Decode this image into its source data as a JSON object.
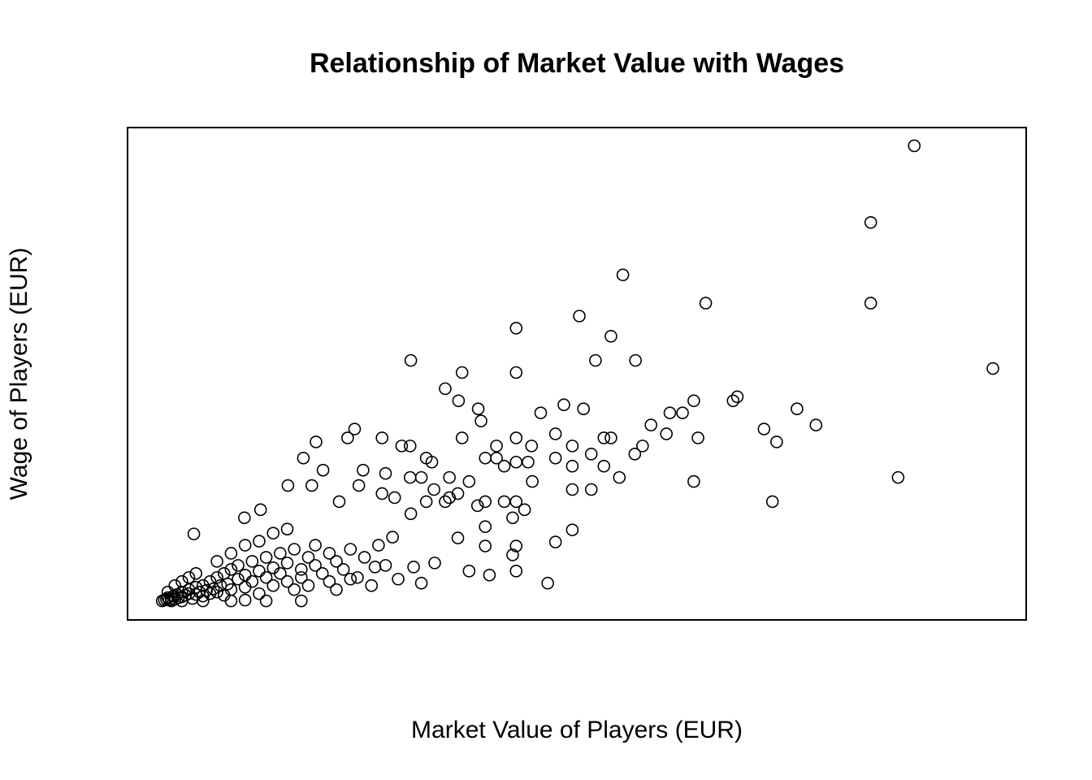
{
  "chart_data": {
    "type": "scatter",
    "title": "Relationship of Market Value with Wages",
    "x_label": "Market Value of Players (EUR)",
    "y_label": "Wage of Players (EUR)",
    "color": "#000000",
    "xlim": [
      -4740000,
      123240000
    ],
    "ylim": [
      -22600,
      587600
    ],
    "x": [
      107300000,
      101100000,
      101100000,
      118500000,
      65800000,
      77600000,
      59600000,
      50600000,
      64100000,
      35600000,
      61900000,
      67600000,
      50600000,
      42900000,
      40500000,
      42400000,
      45200000,
      45600000,
      54100000,
      57400000,
      60200000,
      75900000,
      81500000,
      82100000,
      72500000,
      74300000,
      90600000,
      93300000,
      69800000,
      85900000,
      87700000,
      76500000,
      72000000,
      63100000,
      64100000,
      68600000,
      67500000,
      63100000,
      65300000,
      75900000,
      105000000,
      87100000,
      61300000,
      58600000,
      58600000,
      56200000,
      56200000,
      58600000,
      61300000,
      58600000,
      56200000,
      55100000,
      50600000,
      52800000,
      47800000,
      47800000,
      46200000,
      48900000,
      50600000,
      52300000,
      52900000,
      42900000,
      43900000,
      48900000,
      50600000,
      51800000,
      50100000,
      46200000,
      45100000,
      46200000,
      46200000,
      50600000,
      50100000,
      50600000,
      46800000,
      43900000,
      42300000,
      40500000,
      42300000,
      37800000,
      38600000,
      35500000,
      34300000,
      31500000,
      27600000,
      26600000,
      22100000,
      20300000,
      23100000,
      32000000,
      35500000,
      37100000,
      41100000,
      38900000,
      41100000,
      37800000,
      35600000,
      33300000,
      31500000,
      28800000,
      28200000,
      25400000,
      21500000,
      18100000,
      37100000,
      39000000,
      36000000,
      33800000,
      30500000,
      27000000,
      4700000,
      11900000,
      14200000,
      200000,
      500000,
      800000,
      1000000,
      1200000,
      1500000,
      1800000,
      2000000,
      2300000,
      2500000,
      3000000,
      3000000,
      3500000,
      4000000,
      4000000,
      4500000,
      5000000,
      5000000,
      5500000,
      6000000,
      6000000,
      6500000,
      7000000,
      7000000,
      7500000,
      8000000,
      8000000,
      8500000,
      9000000,
      9000000,
      9500000,
      10000000,
      10000000,
      11000000,
      11000000,
      12000000,
      12000000,
      13000000,
      13000000,
      14000000,
      14000000,
      15000000,
      15000000,
      16000000,
      16000000,
      17000000,
      17000000,
      18000000,
      18000000,
      19000000,
      19000000,
      20000000,
      20000000,
      21000000,
      21000000,
      22000000,
      22000000,
      23000000,
      24000000,
      24000000,
      25000000,
      25000000,
      26000000,
      27000000,
      28000000,
      29000000,
      30000000,
      31000000,
      32000000,
      33000000,
      15000000,
      20000000,
      12000000,
      10000000,
      6000000,
      3000000,
      1500000,
      4000000,
      2000000,
      3000000,
      5000000,
      1000000,
      8000000,
      10000000,
      12000000,
      14000000,
      16000000,
      18000000
    ],
    "y": [
      565000,
      470000,
      370000,
      289000,
      405000,
      370000,
      354000,
      339000,
      329000,
      299000,
      299000,
      299000,
      284000,
      284000,
      264000,
      249000,
      239000,
      224000,
      234000,
      244000,
      239000,
      249000,
      249000,
      254000,
      234000,
      234000,
      239000,
      219000,
      219000,
      214000,
      198000,
      203000,
      208000,
      203000,
      203000,
      193000,
      183000,
      168000,
      154000,
      149000,
      154000,
      124000,
      183000,
      193000,
      168000,
      208000,
      178000,
      139000,
      139000,
      89000,
      74000,
      23000,
      203000,
      193000,
      193000,
      178000,
      178000,
      168000,
      173000,
      173000,
      149000,
      203000,
      149000,
      124000,
      124000,
      114000,
      104000,
      124000,
      119000,
      93000,
      69000,
      69000,
      58000,
      38000,
      33000,
      38000,
      79000,
      124000,
      134000,
      178000,
      173000,
      193000,
      193000,
      203000,
      214000,
      203000,
      198000,
      178000,
      163000,
      159000,
      154000,
      154000,
      154000,
      139000,
      129000,
      124000,
      109000,
      129000,
      134000,
      163000,
      144000,
      124000,
      144000,
      144000,
      23000,
      48000,
      43000,
      28000,
      43000,
      28000,
      84000,
      104000,
      114000,
      1000,
      2000,
      3000,
      5000,
      2000,
      4000,
      7000,
      3000,
      9000,
      5000,
      6000,
      12000,
      8000,
      10000,
      15000,
      4000,
      18000,
      9000,
      12000,
      20000,
      7000,
      14000,
      25000,
      10000,
      16000,
      30000,
      12000,
      20000,
      35000,
      8000,
      22000,
      40000,
      15000,
      28000,
      45000,
      18000,
      33000,
      50000,
      25000,
      38000,
      10000,
      55000,
      30000,
      20000,
      42000,
      60000,
      35000,
      25000,
      48000,
      15000,
      65000,
      40000,
      30000,
      55000,
      20000,
      70000,
      45000,
      35000,
      60000,
      25000,
      50000,
      15000,
      40000,
      65000,
      30000,
      55000,
      20000,
      70000,
      45000,
      80000,
      1000,
      1000,
      2000,
      1000,
      1000,
      1000,
      1000,
      30000,
      20000,
      25000,
      35000,
      12000,
      50000,
      60000,
      70000,
      75000,
      85000,
      90000
    ]
  }
}
